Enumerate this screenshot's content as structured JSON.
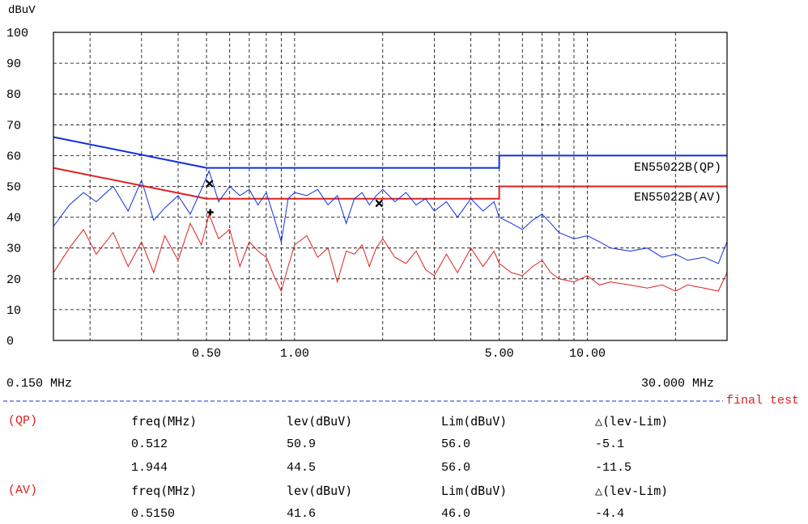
{
  "chart_data": {
    "type": "line",
    "yunit": "dBuV",
    "y_ticks": [
      "100",
      "90",
      "80",
      "70",
      "60",
      "50",
      "40",
      "30",
      "20",
      "10",
      "0"
    ],
    "ylim": [
      0,
      100
    ],
    "x_scale": "log",
    "xlim": [
      0.15,
      30.0
    ],
    "x_tick_labels": [
      {
        "freq": 0.5,
        "label": "0.50"
      },
      {
        "freq": 1.0,
        "label": "1.00"
      },
      {
        "freq": 5.0,
        "label": "5.00"
      },
      {
        "freq": 10.0,
        "label": "10.00"
      }
    ],
    "x_start_label": "0.150 MHz",
    "x_end_label": "30.000 MHz",
    "grid": true,
    "series": [
      {
        "name": "EN55022B(QP)",
        "role": "limit",
        "color": "#1030e0",
        "x": [
          0.15,
          0.5,
          0.5,
          5.0,
          5.0,
          30.0
        ],
        "y": [
          66,
          56,
          56,
          56,
          60,
          60
        ]
      },
      {
        "name": "EN55022B(AV)",
        "role": "limit",
        "color": "#e02020",
        "x": [
          0.15,
          0.5,
          0.5,
          5.0,
          5.0,
          30.0
        ],
        "y": [
          56,
          46,
          46,
          46,
          50,
          50
        ]
      },
      {
        "role": "trace",
        "color": "#1030e0",
        "x": [
          0.15,
          0.17,
          0.19,
          0.21,
          0.24,
          0.27,
          0.3,
          0.33,
          0.36,
          0.4,
          0.44,
          0.48,
          0.51,
          0.55,
          0.6,
          0.65,
          0.7,
          0.75,
          0.8,
          0.85,
          0.9,
          0.95,
          1.0,
          1.1,
          1.2,
          1.3,
          1.4,
          1.5,
          1.6,
          1.7,
          1.8,
          1.9,
          2.0,
          2.2,
          2.4,
          2.6,
          2.8,
          3.0,
          3.3,
          3.6,
          4.0,
          4.4,
          4.8,
          5.0,
          5.5,
          6.0,
          6.5,
          7.0,
          7.5,
          8.0,
          9.0,
          10.0,
          11.0,
          12.0,
          14.0,
          16.0,
          18.0,
          20.0,
          22.0,
          25.0,
          28.0,
          30.0
        ],
        "y": [
          37,
          44,
          48,
          45,
          50,
          42,
          52,
          39,
          43,
          47,
          41,
          49,
          55,
          45,
          50,
          47,
          49,
          44,
          48,
          40,
          32,
          46,
          48,
          47,
          49,
          44,
          47,
          38,
          46,
          48,
          44,
          47,
          49,
          45,
          48,
          44,
          46,
          42,
          45,
          40,
          46,
          42,
          45,
          40,
          38,
          36,
          39,
          41,
          38,
          35,
          33,
          34,
          32,
          30,
          29,
          30,
          27,
          28,
          26,
          27,
          25,
          32
        ]
      },
      {
        "role": "trace",
        "color": "#e02020",
        "x": [
          0.15,
          0.17,
          0.19,
          0.21,
          0.24,
          0.27,
          0.3,
          0.33,
          0.36,
          0.4,
          0.44,
          0.48,
          0.51,
          0.55,
          0.6,
          0.65,
          0.7,
          0.75,
          0.8,
          0.85,
          0.9,
          0.95,
          1.0,
          1.1,
          1.2,
          1.3,
          1.4,
          1.5,
          1.6,
          1.7,
          1.8,
          1.9,
          2.0,
          2.2,
          2.4,
          2.6,
          2.8,
          3.0,
          3.3,
          3.6,
          4.0,
          4.4,
          4.8,
          5.0,
          5.5,
          6.0,
          6.5,
          7.0,
          7.5,
          8.0,
          9.0,
          10.0,
          11.0,
          12.0,
          14.0,
          16.0,
          18.0,
          20.0,
          22.0,
          25.0,
          28.0,
          30.0
        ],
        "y": [
          22,
          30,
          36,
          28,
          35,
          24,
          32,
          22,
          34,
          26,
          38,
          31,
          41,
          33,
          36,
          24,
          32,
          29,
          27,
          21,
          16,
          24,
          31,
          34,
          27,
          30,
          19,
          29,
          28,
          31,
          24,
          30,
          33,
          27,
          25,
          29,
          23,
          21,
          28,
          22,
          30,
          24,
          29,
          25,
          22,
          21,
          24,
          26,
          22,
          20,
          19,
          21,
          18,
          19,
          18,
          17,
          18,
          16,
          18,
          17,
          16,
          22
        ]
      }
    ],
    "markers": [
      {
        "detector": "QP",
        "freq": 0.512,
        "level": 50.9,
        "symbol": "x"
      },
      {
        "detector": "QP",
        "freq": 1.944,
        "level": 44.5,
        "symbol": "x"
      },
      {
        "detector": "AV",
        "freq": 0.515,
        "level": 41.6,
        "symbol": "+"
      }
    ]
  },
  "final_test_label": "final test",
  "qp_table": {
    "tag": "(QP)",
    "headers": [
      "freq(MHz)",
      "lev(dBuV)",
      "Lim(dBuV)",
      "△(lev-Lim)"
    ],
    "rows": [
      [
        "0.512",
        "50.9",
        "56.0",
        "-5.1"
      ],
      [
        "1.944",
        "44.5",
        "56.0",
        "-11.5"
      ]
    ]
  },
  "av_table": {
    "tag": "(AV)",
    "headers": [
      "freq(MHz)",
      "lev(dBuV)",
      "Lim(dBuV)",
      "△(lev-Lim)"
    ],
    "rows": [
      [
        "0.5150",
        "41.6",
        "46.0",
        "-4.4"
      ]
    ]
  }
}
